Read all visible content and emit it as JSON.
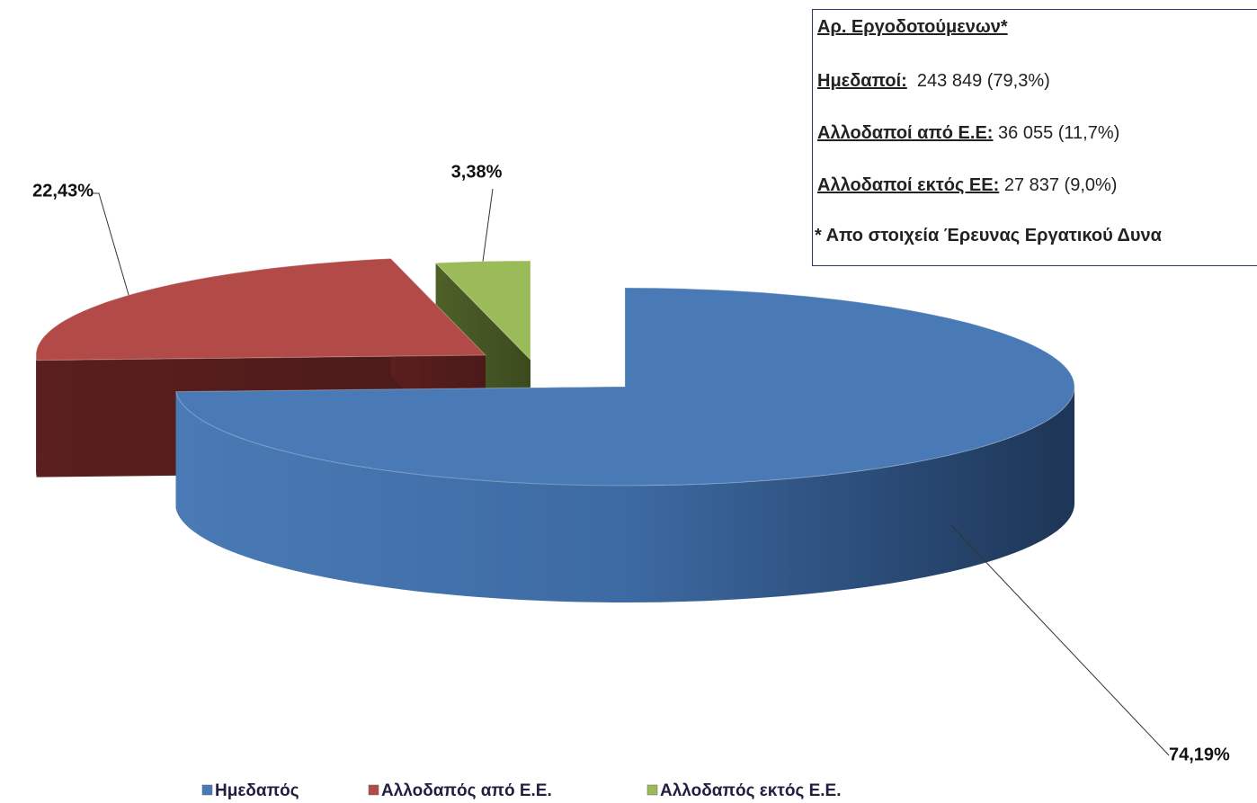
{
  "chart_data": {
    "type": "pie",
    "categories": [
      "Ημεδαπός",
      "Αλλοδαπός από Ε.Ε.",
      "Αλλοδαπός εκτός Ε.Ε."
    ],
    "values": [
      74.19,
      22.43,
      3.38
    ],
    "value_labels": [
      "74,19%",
      "22,43%",
      "3,38%"
    ],
    "colors": [
      "#4a7ab5",
      "#b24a47",
      "#9bbb59"
    ],
    "legend": "bottom"
  },
  "annotation": {
    "title": "Αρ. Εργοδοτούμενων*",
    "rows": [
      {
        "label": "Ημεδαποί:",
        "text": "243 849 (79,3%)"
      },
      {
        "label": "Αλλοδαποί από Ε.Ε:",
        "text": "36 055 (11,7%)"
      },
      {
        "label": "Αλλοδαποί εκτός ΕΕ:",
        "text": "27 837 (9,0%)"
      }
    ],
    "note": "* Απο στοιχεία Έρευνας Εργατικού Δυνα"
  }
}
